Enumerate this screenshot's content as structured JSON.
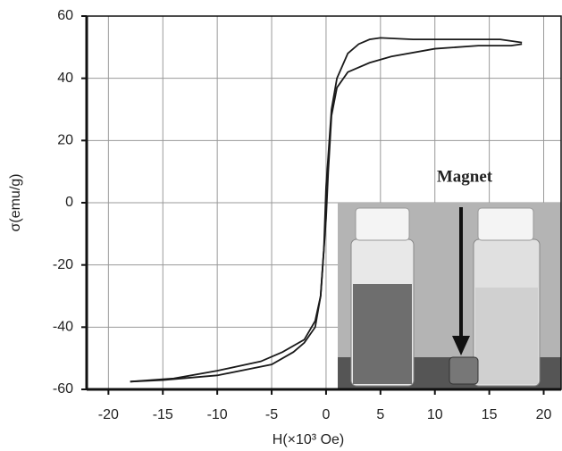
{
  "chart_data": {
    "type": "line",
    "x_label": "H(×10³ Oe)",
    "y_label": "σ(emu/g)",
    "annotation": "Magnet",
    "xlim": [
      -22,
      21.6
    ],
    "xticks": [
      -20,
      -15,
      -10,
      -5,
      0,
      5,
      10,
      15,
      20
    ],
    "ylim": [
      -60,
      60
    ],
    "yticks": [
      -60,
      -40,
      -20,
      0,
      20,
      40,
      60
    ],
    "grid": true,
    "series": [
      {
        "color": "#1a1a1a",
        "x": [
          18,
          16,
          12,
          8,
          5,
          4,
          3,
          2,
          1,
          0.5,
          0.2,
          0,
          -0.2,
          -0.5,
          -1,
          -2,
          -4,
          -6,
          -10,
          -14,
          -18
        ],
        "values": [
          51.5,
          52.5,
          52.5,
          52.5,
          53,
          52.5,
          51,
          48,
          40,
          30,
          15,
          5,
          -15,
          -30,
          -38,
          -44,
          -48,
          -51,
          -54,
          -56.5,
          -57.5
        ]
      },
      {
        "color": "#1a1a1a",
        "x": [
          -18,
          -15,
          -10,
          -5,
          -3,
          -2,
          -1,
          -0.5,
          -0.2,
          0,
          0.2,
          0.5,
          1,
          2,
          4,
          6,
          10,
          14,
          17,
          18
        ],
        "values": [
          -57.5,
          -57,
          -55.5,
          -52,
          -48,
          -45,
          -40,
          -30,
          -15,
          -5,
          10,
          28,
          37,
          42,
          45,
          47,
          49.5,
          50.5,
          50.5,
          51
        ]
      }
    ]
  }
}
